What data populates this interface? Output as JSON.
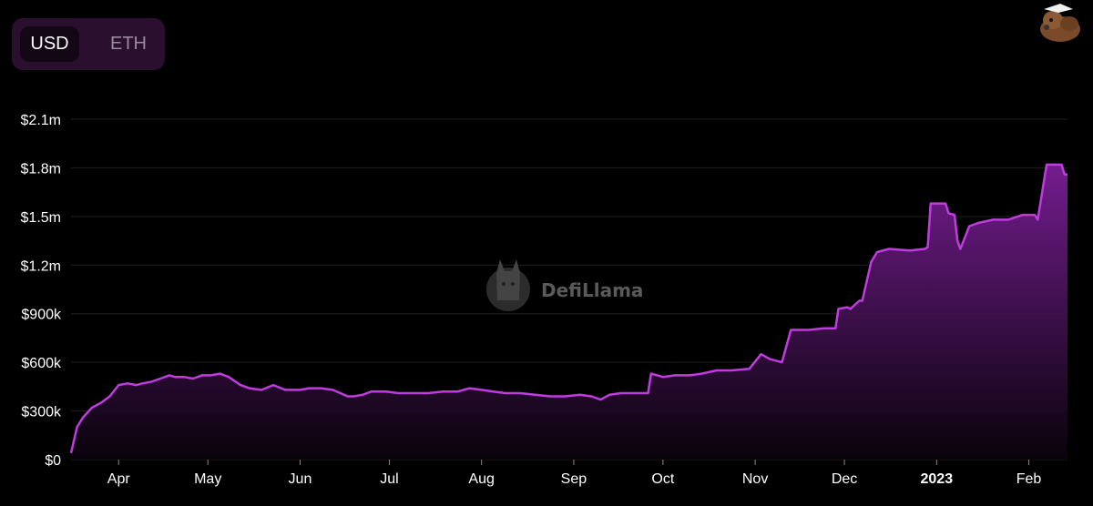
{
  "denomination": {
    "options": [
      "USD",
      "ETH"
    ],
    "selected": "USD"
  },
  "watermark": {
    "text": "DefiLlama",
    "icon": "llama-logo-icon"
  },
  "avatar": {
    "icon": "llama-avatar-icon"
  },
  "colors": {
    "line": "#c13ce0",
    "fill_top": "#7a1e96",
    "fill_bottom": "#0a030c",
    "grid": "#1f1f1f",
    "background": "#000000"
  },
  "chart_data": {
    "type": "area",
    "yaxis": {
      "ticks": [
        "$0",
        "$300k",
        "$600k",
        "$900k",
        "$1.2m",
        "$1.5m",
        "$1.8m",
        "$2.1m"
      ],
      "ylim": [
        0,
        2100000
      ]
    },
    "xaxis": {
      "ticks": [
        {
          "label": "Apr",
          "date": "2022-04-01"
        },
        {
          "label": "May",
          "date": "2022-05-01"
        },
        {
          "label": "Jun",
          "date": "2022-06-01"
        },
        {
          "label": "Jul",
          "date": "2022-07-01"
        },
        {
          "label": "Aug",
          "date": "2022-08-01"
        },
        {
          "label": "Sep",
          "date": "2022-09-01"
        },
        {
          "label": "Oct",
          "date": "2022-10-01"
        },
        {
          "label": "Nov",
          "date": "2022-11-01"
        },
        {
          "label": "Dec",
          "date": "2022-12-01"
        },
        {
          "label": "2023",
          "date": "2023-01-01",
          "bold": true
        },
        {
          "label": "Feb",
          "date": "2023-02-01"
        }
      ],
      "xlim": [
        "2022-03-16",
        "2023-02-14"
      ]
    },
    "grid": true,
    "series": [
      {
        "x": [
          "2022-03-16",
          "2022-03-18",
          "2022-03-20",
          "2022-03-23",
          "2022-03-26",
          "2022-03-29",
          "2022-04-01",
          "2022-04-04",
          "2022-04-07",
          "2022-04-09",
          "2022-04-12",
          "2022-04-15",
          "2022-04-18",
          "2022-04-20",
          "2022-04-23",
          "2022-04-26",
          "2022-04-29",
          "2022-05-02",
          "2022-05-05",
          "2022-05-08",
          "2022-05-12",
          "2022-05-15",
          "2022-05-19",
          "2022-05-23",
          "2022-05-27",
          "2022-06-01",
          "2022-06-04",
          "2022-06-08",
          "2022-06-12",
          "2022-06-17",
          "2022-06-19",
          "2022-06-22",
          "2022-06-25",
          "2022-06-30",
          "2022-07-04",
          "2022-07-09",
          "2022-07-14",
          "2022-07-19",
          "2022-07-24",
          "2022-07-28",
          "2022-08-01",
          "2022-08-05",
          "2022-08-09",
          "2022-08-14",
          "2022-08-19",
          "2022-08-24",
          "2022-08-29",
          "2022-09-03",
          "2022-09-07",
          "2022-09-10",
          "2022-09-13",
          "2022-09-17",
          "2022-09-22",
          "2022-09-26",
          "2022-09-27",
          "2022-10-01",
          "2022-10-05",
          "2022-10-10",
          "2022-10-14",
          "2022-10-19",
          "2022-10-24",
          "2022-10-30",
          "2022-11-03",
          "2022-11-06",
          "2022-11-10",
          "2022-11-13",
          "2022-11-14",
          "2022-11-19",
          "2022-11-24",
          "2022-11-28",
          "2022-11-29",
          "2022-12-02",
          "2022-12-03",
          "2022-12-06",
          "2022-12-07",
          "2022-12-10",
          "2022-12-12",
          "2022-12-16",
          "2022-12-23",
          "2022-12-28",
          "2022-12-29",
          "2022-12-30",
          "2023-01-04",
          "2023-01-05",
          "2023-01-07",
          "2023-01-08",
          "2023-01-09",
          "2023-01-12",
          "2023-01-15",
          "2023-01-20",
          "2023-01-25",
          "2023-01-30",
          "2023-02-03",
          "2023-02-04",
          "2023-02-06",
          "2023-02-07",
          "2023-02-10",
          "2023-02-12",
          "2023-02-13",
          "2023-02-14"
        ],
        "y": [
          40000,
          200000,
          260000,
          320000,
          350000,
          390000,
          460000,
          470000,
          460000,
          470000,
          480000,
          500000,
          520000,
          510000,
          510000,
          500000,
          520000,
          520000,
          530000,
          510000,
          460000,
          440000,
          430000,
          460000,
          430000,
          430000,
          440000,
          440000,
          430000,
          390000,
          390000,
          400000,
          420000,
          420000,
          410000,
          410000,
          410000,
          420000,
          420000,
          440000,
          430000,
          420000,
          410000,
          410000,
          400000,
          390000,
          390000,
          400000,
          390000,
          370000,
          400000,
          410000,
          410000,
          410000,
          530000,
          510000,
          520000,
          520000,
          530000,
          550000,
          550000,
          560000,
          650000,
          620000,
          600000,
          800000,
          800000,
          800000,
          810000,
          810000,
          930000,
          940000,
          930000,
          980000,
          980000,
          1220000,
          1280000,
          1300000,
          1290000,
          1300000,
          1310000,
          1580000,
          1580000,
          1520000,
          1510000,
          1350000,
          1300000,
          1440000,
          1460000,
          1480000,
          1480000,
          1510000,
          1510000,
          1480000,
          1710000,
          1820000,
          1820000,
          1820000,
          1760000,
          1760000
        ]
      }
    ]
  }
}
